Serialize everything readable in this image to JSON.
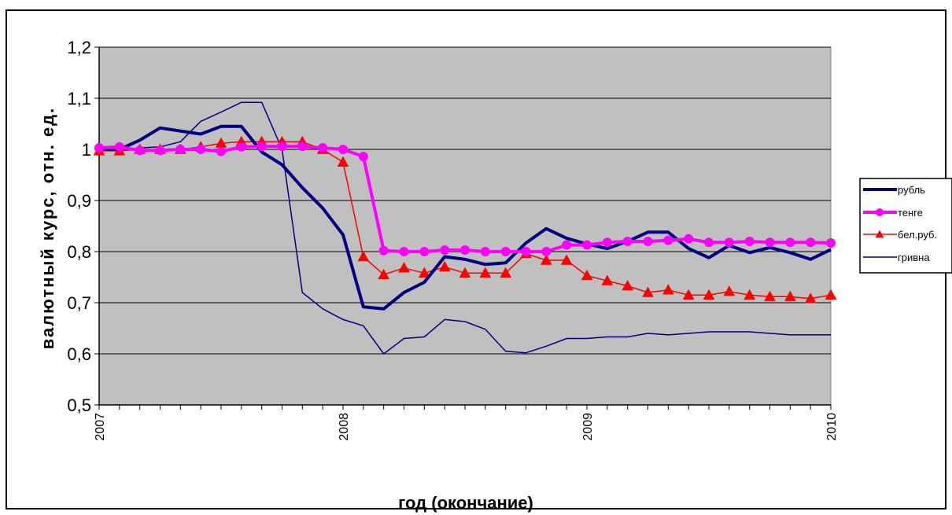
{
  "chart_data": {
    "type": "line",
    "xlabel": "год (окончание)",
    "ylabel": "валютный курс, отн. ед.",
    "ylim": [
      0.5,
      1.2
    ],
    "xlim": [
      2007,
      2010
    ],
    "y_ticks": [
      "0,5",
      "0,6",
      "0,7",
      "0,8",
      "0,9",
      "1",
      "1,1",
      "1,2"
    ],
    "x_ticks": [
      "2007",
      "2008",
      "2009",
      "2010"
    ],
    "grid": "horizontal",
    "plot_background": "#c0c0c0",
    "legend_position": "right",
    "x": [
      2007.0,
      2007.0833,
      2007.1667,
      2007.25,
      2007.3333,
      2007.4167,
      2007.5,
      2007.5833,
      2007.6667,
      2007.75,
      2007.8333,
      2007.9167,
      2008.0,
      2008.0833,
      2008.1667,
      2008.25,
      2008.3333,
      2008.4167,
      2008.5,
      2008.5833,
      2008.6667,
      2008.75,
      2008.8333,
      2008.9167,
      2009.0,
      2009.0833,
      2009.1667,
      2009.25,
      2009.3333,
      2009.4167,
      2009.5,
      2009.5833,
      2009.6667,
      2009.75,
      2009.8333,
      2009.9167,
      2010.0
    ],
    "series": [
      {
        "name": "рубль",
        "color": "#000080",
        "stroke_width": 4,
        "marker": "none",
        "values": [
          1.0,
          1.0,
          1.018,
          1.042,
          1.036,
          1.03,
          1.045,
          1.045,
          0.995,
          0.97,
          0.925,
          0.885,
          0.833,
          0.692,
          0.688,
          0.72,
          0.74,
          0.79,
          0.785,
          0.775,
          0.778,
          0.817,
          0.845,
          0.826,
          0.815,
          0.806,
          0.82,
          0.838,
          0.838,
          0.806,
          0.788,
          0.812,
          0.798,
          0.808,
          0.798,
          0.785,
          0.804
        ]
      },
      {
        "name": "тенге",
        "color": "#ff00ff",
        "stroke_width": 4,
        "marker": "circle",
        "values": [
          1.003,
          1.005,
          0.998,
          0.998,
          1.0,
          1.0,
          0.996,
          1.005,
          1.006,
          1.006,
          1.006,
          1.003,
          1.0,
          0.986,
          0.802,
          0.8,
          0.8,
          0.803,
          0.803,
          0.8,
          0.8,
          0.8,
          0.8,
          0.813,
          0.813,
          0.818,
          0.82,
          0.82,
          0.822,
          0.825,
          0.818,
          0.818,
          0.82,
          0.818,
          0.818,
          0.818,
          0.817
        ]
      },
      {
        "name": "бел.руб.",
        "color": "#ff0000",
        "stroke_width": 1.5,
        "marker": "triangle",
        "values": [
          0.997,
          0.997,
          1.0,
          1.0,
          1.0,
          1.005,
          1.012,
          1.015,
          1.015,
          1.015,
          1.015,
          1.0,
          0.975,
          0.79,
          0.755,
          0.768,
          0.758,
          0.77,
          0.758,
          0.758,
          0.758,
          0.796,
          0.783,
          0.783,
          0.753,
          0.743,
          0.733,
          0.72,
          0.725,
          0.715,
          0.715,
          0.722,
          0.715,
          0.712,
          0.712,
          0.708,
          0.715
        ]
      },
      {
        "name": "гривна",
        "color": "#000080",
        "stroke_width": 1.5,
        "marker": "none",
        "values": [
          1.0,
          0.997,
          1.003,
          1.005,
          1.015,
          1.055,
          1.073,
          1.092,
          1.092,
          1.0,
          0.72,
          0.688,
          0.667,
          0.655,
          0.6,
          0.63,
          0.633,
          0.667,
          0.663,
          0.648,
          0.605,
          0.602,
          0.615,
          0.63,
          0.63,
          0.633,
          0.633,
          0.64,
          0.637,
          0.64,
          0.643,
          0.643,
          0.643,
          0.64,
          0.637,
          0.637,
          0.637
        ]
      }
    ]
  }
}
